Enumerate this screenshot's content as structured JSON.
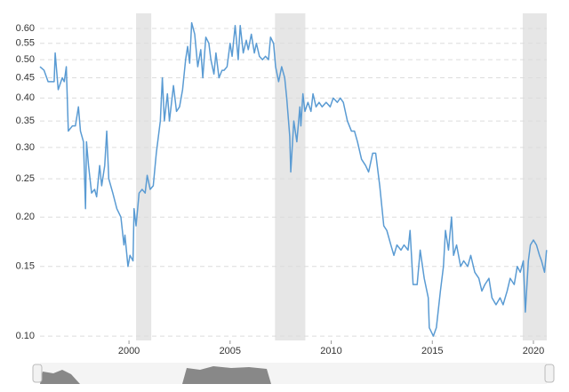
{
  "chart_data": {
    "type": "line",
    "log": true,
    "grid": true,
    "color": "#5a9bd3",
    "shade_color": "#e6e6e6",
    "shaded_ranges": [
      [
        2000.35,
        2001.1
      ],
      [
        2007.22,
        2008.72
      ],
      [
        2019.47,
        2020.66
      ]
    ],
    "x": [
      1995.6,
      1995.8,
      1996.0,
      1996.3,
      1996.35,
      1996.5,
      1996.7,
      1996.8,
      1996.9,
      1997.0,
      1997.2,
      1997.35,
      1997.5,
      1997.6,
      1997.75,
      1997.85,
      1997.9,
      1998.0,
      1998.15,
      1998.3,
      1998.4,
      1998.55,
      1998.65,
      1998.8,
      1998.9,
      1999.0,
      1999.2,
      1999.4,
      1999.6,
      1999.75,
      1999.8,
      1999.95,
      2000.05,
      2000.2,
      2000.25,
      2000.35,
      2000.5,
      2000.65,
      2000.8,
      2000.9,
      2001.05,
      2001.2,
      2001.35,
      2001.55,
      2001.65,
      2001.75,
      2001.9,
      2002.0,
      2002.2,
      2002.35,
      2002.5,
      2002.65,
      2002.8,
      2002.9,
      2003.0,
      2003.1,
      2003.25,
      2003.4,
      2003.55,
      2003.65,
      2003.8,
      2003.95,
      2004.05,
      2004.2,
      2004.3,
      2004.45,
      2004.6,
      2004.7,
      2004.85,
      2005.0,
      2005.1,
      2005.25,
      2005.4,
      2005.5,
      2005.65,
      2005.8,
      2005.9,
      2006.05,
      2006.2,
      2006.3,
      2006.45,
      2006.6,
      2006.75,
      2006.9,
      2007.0,
      2007.15,
      2007.25,
      2007.4,
      2007.55,
      2007.7,
      2007.8,
      2007.95,
      2008.0,
      2008.15,
      2008.3,
      2008.45,
      2008.5,
      2008.6,
      2008.7,
      2008.85,
      2009.0,
      2009.1,
      2009.25,
      2009.4,
      2009.55,
      2009.75,
      2009.95,
      2010.1,
      2010.3,
      2010.45,
      2010.6,
      2010.8,
      2011.0,
      2011.15,
      2011.3,
      2011.5,
      2011.7,
      2011.85,
      2012.05,
      2012.2,
      2012.4,
      2012.6,
      2012.75,
      2012.95,
      2013.1,
      2013.25,
      2013.45,
      2013.6,
      2013.8,
      2013.9,
      2014.05,
      2014.25,
      2014.4,
      2014.6,
      2014.8,
      2014.85,
      2015.05,
      2015.2,
      2015.4,
      2015.55,
      2015.65,
      2015.8,
      2015.95,
      2016.05,
      2016.2,
      2016.4,
      2016.55,
      2016.75,
      2016.9,
      2017.1,
      2017.3,
      2017.45,
      2017.6,
      2017.8,
      2017.95,
      2018.15,
      2018.35,
      2018.5,
      2018.7,
      2018.85,
      2019.05,
      2019.2,
      2019.35,
      2019.5,
      2019.6,
      2019.75,
      2019.85,
      2020.0,
      2020.15,
      2020.3,
      2020.4,
      2020.55,
      2020.65
    ],
    "values": [
      0.48,
      0.47,
      0.44,
      0.44,
      0.52,
      0.42,
      0.45,
      0.44,
      0.48,
      0.33,
      0.34,
      0.34,
      0.38,
      0.33,
      0.31,
      0.21,
      0.31,
      0.27,
      0.23,
      0.235,
      0.225,
      0.27,
      0.24,
      0.27,
      0.33,
      0.25,
      0.23,
      0.21,
      0.2,
      0.17,
      0.18,
      0.15,
      0.16,
      0.155,
      0.21,
      0.19,
      0.23,
      0.235,
      0.23,
      0.255,
      0.235,
      0.24,
      0.29,
      0.35,
      0.45,
      0.35,
      0.41,
      0.35,
      0.43,
      0.37,
      0.38,
      0.42,
      0.5,
      0.54,
      0.49,
      0.62,
      0.58,
      0.48,
      0.53,
      0.45,
      0.57,
      0.55,
      0.5,
      0.46,
      0.52,
      0.45,
      0.47,
      0.47,
      0.48,
      0.55,
      0.51,
      0.61,
      0.5,
      0.61,
      0.52,
      0.56,
      0.53,
      0.58,
      0.52,
      0.55,
      0.51,
      0.5,
      0.51,
      0.5,
      0.57,
      0.55,
      0.48,
      0.44,
      0.48,
      0.45,
      0.4,
      0.32,
      0.26,
      0.35,
      0.31,
      0.38,
      0.34,
      0.41,
      0.37,
      0.39,
      0.37,
      0.41,
      0.38,
      0.39,
      0.38,
      0.39,
      0.38,
      0.4,
      0.39,
      0.4,
      0.39,
      0.35,
      0.33,
      0.33,
      0.31,
      0.28,
      0.27,
      0.26,
      0.29,
      0.29,
      0.24,
      0.19,
      0.185,
      0.17,
      0.16,
      0.17,
      0.165,
      0.17,
      0.165,
      0.185,
      0.135,
      0.135,
      0.165,
      0.14,
      0.125,
      0.105,
      0.1,
      0.105,
      0.13,
      0.15,
      0.185,
      0.165,
      0.2,
      0.16,
      0.17,
      0.15,
      0.155,
      0.15,
      0.16,
      0.145,
      0.14,
      0.13,
      0.135,
      0.14,
      0.125,
      0.12,
      0.125,
      0.12,
      0.13,
      0.14,
      0.135,
      0.15,
      0.145,
      0.155,
      0.115,
      0.155,
      0.17,
      0.175,
      0.17,
      0.16,
      0.155,
      0.145,
      0.165
    ],
    "xlim": [
      1995.6,
      2020.66
    ],
    "xticks": [
      2000,
      2005,
      2010,
      2015,
      2020
    ],
    "ylim": [
      0.0975,
      0.655
    ],
    "yticks": [
      {
        "value": 0.1,
        "label": "0.10"
      },
      0.15,
      {
        "value": 0.2,
        "label": "0.20"
      },
      0.25,
      {
        "value": 0.3,
        "label": "0.30"
      },
      0.35,
      {
        "value": 0.4,
        "label": "0.40"
      },
      0.45,
      {
        "value": 0.5,
        "label": "0.50"
      },
      0.55,
      {
        "value": 0.6,
        "label": "0.60"
      }
    ]
  }
}
